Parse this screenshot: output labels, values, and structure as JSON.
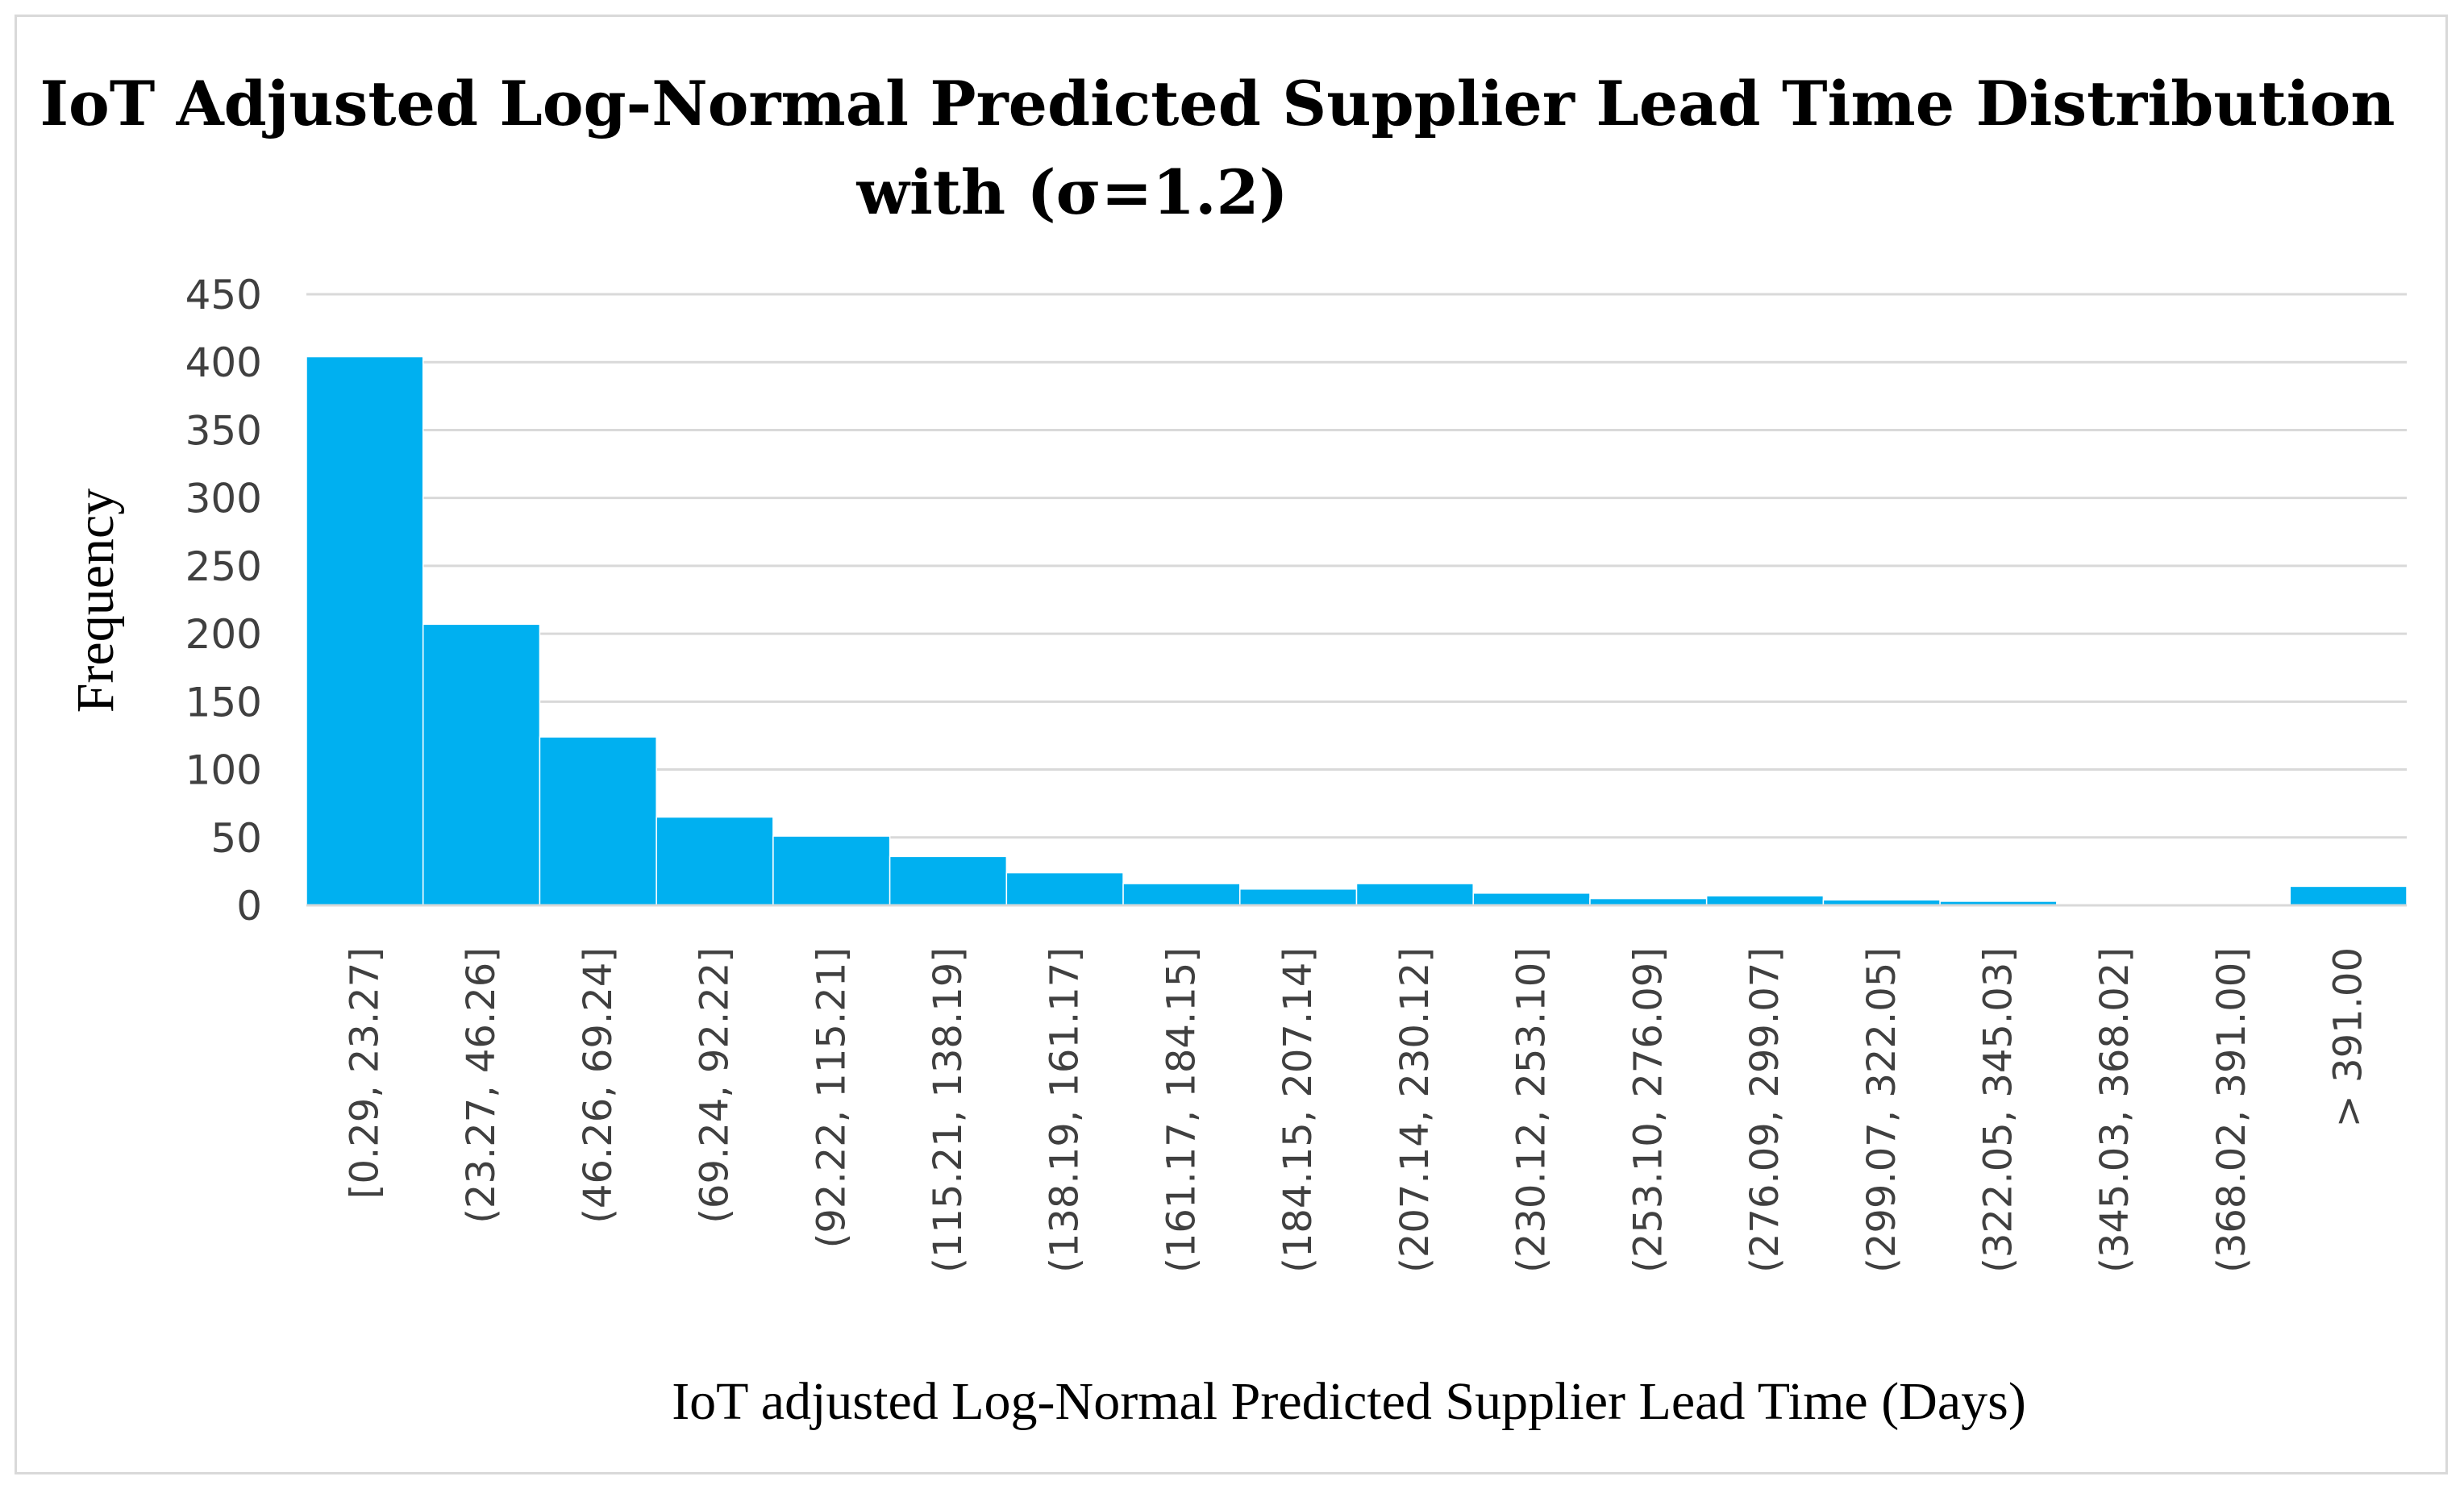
{
  "chart_data": {
    "type": "bar",
    "title_line1": "IoT Adjusted Log-Normal Predicted Supplier Lead Time Distribution",
    "title_line2": "with (σ=1.2)",
    "xlabel": "IoT adjusted Log-Normal Predicted Supplier Lead Time (Days)",
    "ylabel": "Frequency",
    "ylim": [
      0,
      450
    ],
    "yticks": [
      0,
      50,
      100,
      150,
      200,
      250,
      300,
      350,
      400,
      450
    ],
    "grid": true,
    "legend": "none",
    "bar_color": "#00b0f0",
    "categories": [
      "[0.29, 23.27]",
      "(23.27, 46.26]",
      "(46.26, 69.24]",
      "(69.24, 92.22]",
      "(92.22, 115.21]",
      "(115.21, 138.19]",
      "(138.19, 161.17]",
      "(161.17, 184.15]",
      "(184.15, 207.14]",
      "(207.14, 230.12]",
      "(230.12, 253.10]",
      "(253.10, 276.09]",
      "(276.09, 299.07]",
      "(299.07, 322.05]",
      "(322.05, 345.03]",
      "(345.03, 368.02]",
      "(368.02, 391.00]",
      "> 391.00"
    ],
    "values": [
      404,
      207,
      124,
      65,
      51,
      36,
      24,
      16,
      12,
      16,
      9,
      5,
      7,
      4,
      3,
      1,
      1,
      14
    ]
  }
}
